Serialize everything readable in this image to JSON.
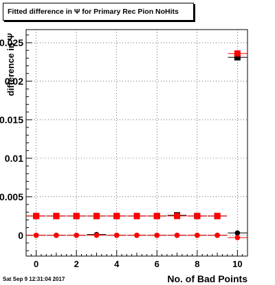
{
  "title": "Fitted difference in  Ψ  for Primary Rec Pion NoHits",
  "timestamp": "Sat Sep  9 12:31:04 2017",
  "chart_data": {
    "type": "scatter",
    "title": "Fitted difference in  Ψ  for Primary Rec Pion NoHits",
    "xlabel": "No. of Bad Points",
    "ylabel": "difference in Ψ",
    "xlim": [
      -0.5,
      10.5
    ],
    "ylim": [
      -0.0027,
      0.0267
    ],
    "x_ticks": [
      0,
      2,
      4,
      6,
      8,
      10
    ],
    "y_ticks": [
      0,
      0.005,
      0.01,
      0.015,
      0.02,
      0.025
    ],
    "y_tick_labels": [
      "0",
      "0.005",
      "0.01",
      "0.015",
      "0.02",
      "0.025"
    ],
    "grid": true,
    "series": [
      {
        "marker": "square",
        "color": "#000000",
        "x": [
          0,
          1,
          2,
          3,
          4,
          5,
          6,
          7,
          8,
          9,
          10
        ],
        "y": [
          0.0025,
          0.0025,
          0.0025,
          0.0025,
          0.0025,
          0.0025,
          0.0025,
          0.0026,
          0.0025,
          0.0025,
          0.0231
        ]
      },
      {
        "marker": "square",
        "color": "#ff0000",
        "x": [
          0,
          1,
          2,
          3,
          4,
          5,
          6,
          7,
          8,
          9,
          10
        ],
        "y": [
          0.0025,
          0.0025,
          0.0025,
          0.0025,
          0.0025,
          0.0025,
          0.0025,
          0.0025,
          0.0025,
          0.0025,
          0.0236
        ]
      },
      {
        "marker": "circle",
        "color": "#000000",
        "x": [
          0,
          1,
          2,
          3,
          4,
          5,
          6,
          7,
          8,
          9,
          10
        ],
        "y": [
          0,
          0,
          0,
          0.0001,
          0,
          0,
          0,
          0,
          0,
          0,
          0.0003
        ]
      },
      {
        "marker": "circle",
        "color": "#ff0000",
        "x": [
          0,
          1,
          2,
          3,
          4,
          5,
          6,
          7,
          8,
          9,
          10
        ],
        "y": [
          0,
          0,
          0,
          0,
          0,
          0,
          0,
          0,
          0,
          0,
          -0.0003
        ]
      }
    ]
  }
}
